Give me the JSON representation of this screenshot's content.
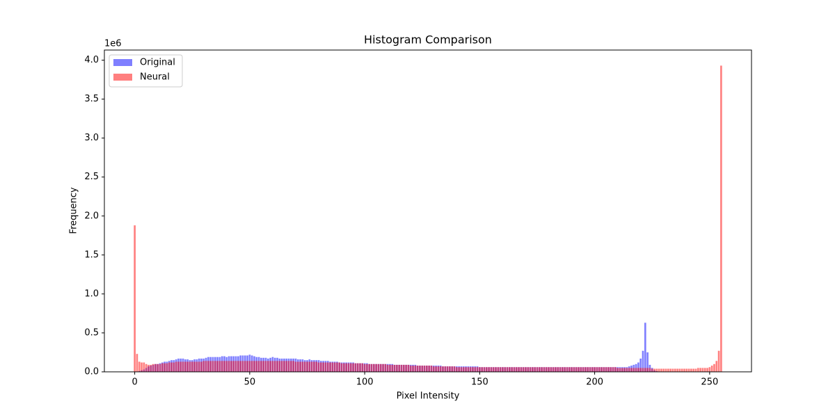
{
  "chart_data": {
    "type": "bar",
    "title": "Histogram Comparison",
    "xlabel": "Pixel Intensity",
    "ylabel": "Frequency",
    "y_offset_label": "1e6",
    "x": [
      0,
      1,
      2,
      3,
      4,
      5,
      6,
      7,
      8,
      9,
      10,
      11,
      12,
      13,
      14,
      15,
      16,
      17,
      18,
      19,
      20,
      21,
      22,
      23,
      24,
      25,
      26,
      27,
      28,
      29,
      30,
      31,
      32,
      33,
      34,
      35,
      36,
      37,
      38,
      39,
      40,
      41,
      42,
      43,
      44,
      45,
      46,
      47,
      48,
      49,
      50,
      51,
      52,
      53,
      54,
      55,
      56,
      57,
      58,
      59,
      60,
      61,
      62,
      63,
      64,
      65,
      66,
      67,
      68,
      69,
      70,
      71,
      72,
      73,
      74,
      75,
      76,
      77,
      78,
      79,
      80,
      81,
      82,
      83,
      84,
      85,
      86,
      87,
      88,
      89,
      90,
      91,
      92,
      93,
      94,
      95,
      96,
      97,
      98,
      99,
      100,
      101,
      102,
      103,
      104,
      105,
      106,
      107,
      108,
      109,
      110,
      111,
      112,
      113,
      114,
      115,
      116,
      117,
      118,
      119,
      120,
      121,
      122,
      123,
      124,
      125,
      126,
      127,
      128,
      129,
      130,
      131,
      132,
      133,
      134,
      135,
      136,
      137,
      138,
      139,
      140,
      141,
      142,
      143,
      144,
      145,
      146,
      147,
      148,
      149,
      150,
      151,
      152,
      153,
      154,
      155,
      156,
      157,
      158,
      159,
      160,
      161,
      162,
      163,
      164,
      165,
      166,
      167,
      168,
      169,
      170,
      171,
      172,
      173,
      174,
      175,
      176,
      177,
      178,
      179,
      180,
      181,
      182,
      183,
      184,
      185,
      186,
      187,
      188,
      189,
      190,
      191,
      192,
      193,
      194,
      195,
      196,
      197,
      198,
      199,
      200,
      201,
      202,
      203,
      204,
      205,
      206,
      207,
      208,
      209,
      210,
      211,
      212,
      213,
      214,
      215,
      216,
      217,
      218,
      219,
      220,
      221,
      222,
      223,
      224,
      225,
      226,
      227,
      228,
      229,
      230,
      231,
      232,
      233,
      234,
      235,
      236,
      237,
      238,
      239,
      240,
      241,
      242,
      243,
      244,
      245,
      246,
      247,
      248,
      249,
      250,
      251,
      252,
      253,
      254,
      255
    ],
    "series": [
      {
        "name": "Original",
        "color": "#0000ff",
        "values": [
          0,
          0,
          0.01,
          0.02,
          0.03,
          0.05,
          0.07,
          0.08,
          0.09,
          0.1,
          0.1,
          0.11,
          0.12,
          0.13,
          0.13,
          0.14,
          0.15,
          0.15,
          0.16,
          0.17,
          0.17,
          0.17,
          0.16,
          0.16,
          0.15,
          0.15,
          0.16,
          0.16,
          0.17,
          0.17,
          0.17,
          0.18,
          0.19,
          0.19,
          0.19,
          0.19,
          0.19,
          0.19,
          0.2,
          0.2,
          0.19,
          0.2,
          0.2,
          0.2,
          0.2,
          0.2,
          0.21,
          0.21,
          0.21,
          0.21,
          0.22,
          0.21,
          0.2,
          0.19,
          0.19,
          0.18,
          0.18,
          0.18,
          0.17,
          0.18,
          0.19,
          0.18,
          0.18,
          0.17,
          0.17,
          0.17,
          0.17,
          0.17,
          0.17,
          0.17,
          0.17,
          0.16,
          0.16,
          0.16,
          0.15,
          0.15,
          0.16,
          0.15,
          0.15,
          0.15,
          0.15,
          0.14,
          0.14,
          0.14,
          0.14,
          0.13,
          0.13,
          0.13,
          0.13,
          0.12,
          0.12,
          0.12,
          0.12,
          0.12,
          0.12,
          0.12,
          0.11,
          0.11,
          0.11,
          0.11,
          0.11,
          0.11,
          0.1,
          0.1,
          0.1,
          0.1,
          0.1,
          0.1,
          0.1,
          0.1,
          0.1,
          0.1,
          0.1,
          0.09,
          0.09,
          0.09,
          0.09,
          0.09,
          0.09,
          0.09,
          0.09,
          0.09,
          0.09,
          0.08,
          0.08,
          0.08,
          0.08,
          0.08,
          0.08,
          0.08,
          0.08,
          0.08,
          0.08,
          0.08,
          0.07,
          0.07,
          0.07,
          0.07,
          0.07,
          0.07,
          0.07,
          0.07,
          0.07,
          0.07,
          0.07,
          0.07,
          0.07,
          0.07,
          0.07,
          0.07,
          0.06,
          0.06,
          0.06,
          0.06,
          0.06,
          0.06,
          0.06,
          0.06,
          0.06,
          0.06,
          0.06,
          0.06,
          0.06,
          0.06,
          0.06,
          0.06,
          0.06,
          0.06,
          0.06,
          0.06,
          0.06,
          0.06,
          0.06,
          0.06,
          0.06,
          0.06,
          0.06,
          0.06,
          0.06,
          0.06,
          0.06,
          0.06,
          0.06,
          0.06,
          0.06,
          0.06,
          0.06,
          0.06,
          0.06,
          0.06,
          0.06,
          0.06,
          0.06,
          0.06,
          0.06,
          0.06,
          0.06,
          0.06,
          0.06,
          0.06,
          0.06,
          0.06,
          0.06,
          0.06,
          0.06,
          0.06,
          0.06,
          0.06,
          0.06,
          0.06,
          0.06,
          0.06,
          0.06,
          0.06,
          0.06,
          0.07,
          0.08,
          0.09,
          0.1,
          0.12,
          0.17,
          0.27,
          0.63,
          0.25,
          0.09,
          0.05,
          0.02,
          0.01,
          0,
          0,
          0,
          0,
          0,
          0,
          0,
          0,
          0,
          0,
          0,
          0,
          0,
          0,
          0,
          0,
          0,
          0,
          0,
          0,
          0,
          0,
          0,
          0,
          0,
          0,
          0,
          0
        ]
      },
      {
        "name": "Neural",
        "color": "#ff0000",
        "values": [
          1.88,
          0.23,
          0.13,
          0.12,
          0.12,
          0.1,
          0.09,
          0.09,
          0.1,
          0.1,
          0.1,
          0.1,
          0.11,
          0.11,
          0.11,
          0.12,
          0.12,
          0.12,
          0.13,
          0.13,
          0.13,
          0.13,
          0.13,
          0.13,
          0.13,
          0.13,
          0.13,
          0.13,
          0.13,
          0.13,
          0.14,
          0.14,
          0.14,
          0.14,
          0.14,
          0.14,
          0.14,
          0.14,
          0.14,
          0.14,
          0.14,
          0.14,
          0.14,
          0.14,
          0.14,
          0.14,
          0.14,
          0.14,
          0.14,
          0.14,
          0.14,
          0.14,
          0.14,
          0.14,
          0.14,
          0.14,
          0.14,
          0.14,
          0.14,
          0.14,
          0.14,
          0.14,
          0.14,
          0.14,
          0.14,
          0.14,
          0.14,
          0.14,
          0.14,
          0.14,
          0.13,
          0.13,
          0.13,
          0.13,
          0.13,
          0.13,
          0.13,
          0.13,
          0.13,
          0.13,
          0.12,
          0.12,
          0.12,
          0.12,
          0.12,
          0.12,
          0.12,
          0.12,
          0.12,
          0.12,
          0.11,
          0.11,
          0.11,
          0.11,
          0.11,
          0.11,
          0.11,
          0.11,
          0.11,
          0.11,
          0.1,
          0.1,
          0.1,
          0.1,
          0.1,
          0.1,
          0.1,
          0.1,
          0.1,
          0.1,
          0.09,
          0.09,
          0.09,
          0.09,
          0.09,
          0.09,
          0.09,
          0.09,
          0.09,
          0.09,
          0.08,
          0.08,
          0.08,
          0.08,
          0.08,
          0.08,
          0.08,
          0.08,
          0.08,
          0.08,
          0.07,
          0.07,
          0.07,
          0.07,
          0.07,
          0.07,
          0.07,
          0.07,
          0.07,
          0.07,
          0.06,
          0.06,
          0.06,
          0.06,
          0.06,
          0.06,
          0.06,
          0.06,
          0.06,
          0.06,
          0.06,
          0.06,
          0.06,
          0.06,
          0.06,
          0.06,
          0.06,
          0.06,
          0.06,
          0.06,
          0.06,
          0.06,
          0.06,
          0.06,
          0.06,
          0.06,
          0.06,
          0.06,
          0.06,
          0.06,
          0.06,
          0.06,
          0.06,
          0.06,
          0.06,
          0.06,
          0.06,
          0.06,
          0.06,
          0.06,
          0.06,
          0.06,
          0.06,
          0.06,
          0.06,
          0.06,
          0.06,
          0.06,
          0.06,
          0.06,
          0.06,
          0.06,
          0.06,
          0.06,
          0.06,
          0.06,
          0.06,
          0.06,
          0.06,
          0.06,
          0.06,
          0.06,
          0.06,
          0.06,
          0.06,
          0.06,
          0.06,
          0.06,
          0.06,
          0.06,
          0.05,
          0.05,
          0.05,
          0.05,
          0.05,
          0.05,
          0.05,
          0.05,
          0.05,
          0.05,
          0.05,
          0.05,
          0.05,
          0.05,
          0.05,
          0.04,
          0.04,
          0.04,
          0.04,
          0.04,
          0.04,
          0.04,
          0.04,
          0.04,
          0.04,
          0.04,
          0.04,
          0.04,
          0.04,
          0.04,
          0.04,
          0.04,
          0.04,
          0.04,
          0.04,
          0.05,
          0.05,
          0.05,
          0.05,
          0.05,
          0.06,
          0.08,
          0.1,
          0.14,
          0.27,
          3.93
        ]
      }
    ],
    "alpha": 0.5,
    "bar_width": 0.8,
    "xlim": [
      -13.2,
      268.2
    ],
    "xticks": [
      0,
      50,
      100,
      150,
      200,
      250
    ],
    "ylim": [
      0,
      4.13
    ],
    "yticks": [
      {
        "value": 0,
        "label": "0.0"
      },
      0.5,
      {
        "value": 1,
        "label": "1.0"
      },
      1.5,
      {
        "value": 2,
        "label": "2.0"
      },
      2.5,
      {
        "value": 3,
        "label": "3.0"
      },
      3.5,
      {
        "value": 4,
        "label": "4.0"
      }
    ],
    "legend": "upper left",
    "grid": false
  }
}
